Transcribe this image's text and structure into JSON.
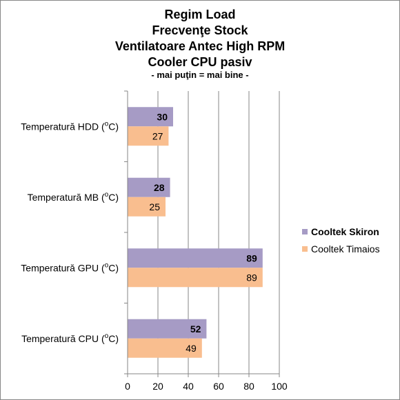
{
  "chart_data": {
    "type": "bar",
    "orientation": "horizontal",
    "title_lines": [
      "Regim Load",
      "Frecvenţe Stock",
      "Ventilatoare Antec High RPM",
      "Cooler CPU pasiv"
    ],
    "subtitle": "- mai puţin = mai bine -",
    "categories": [
      {
        "name": "Temperatură  HDD (",
        "sup": "o",
        "unit": "C)"
      },
      {
        "name": "Temperatură  MB (",
        "sup": "o",
        "unit": "C)"
      },
      {
        "name": "Temperatură  GPU (",
        "sup": "o",
        "unit": "C)"
      },
      {
        "name": "Temperatură  CPU (",
        "sup": "o",
        "unit": "C)"
      }
    ],
    "series": [
      {
        "name": "Cooltek Skiron",
        "color": "#a69bc5",
        "values": [
          30,
          28,
          89,
          52
        ]
      },
      {
        "name": "Cooltek Timaios",
        "color": "#f9be8f",
        "values": [
          27,
          25,
          89,
          49
        ]
      }
    ],
    "xlim": [
      0,
      100
    ],
    "xticks": [
      "0",
      "20",
      "40",
      "60",
      "80",
      "100"
    ],
    "grid": true,
    "legend_position": "right"
  }
}
